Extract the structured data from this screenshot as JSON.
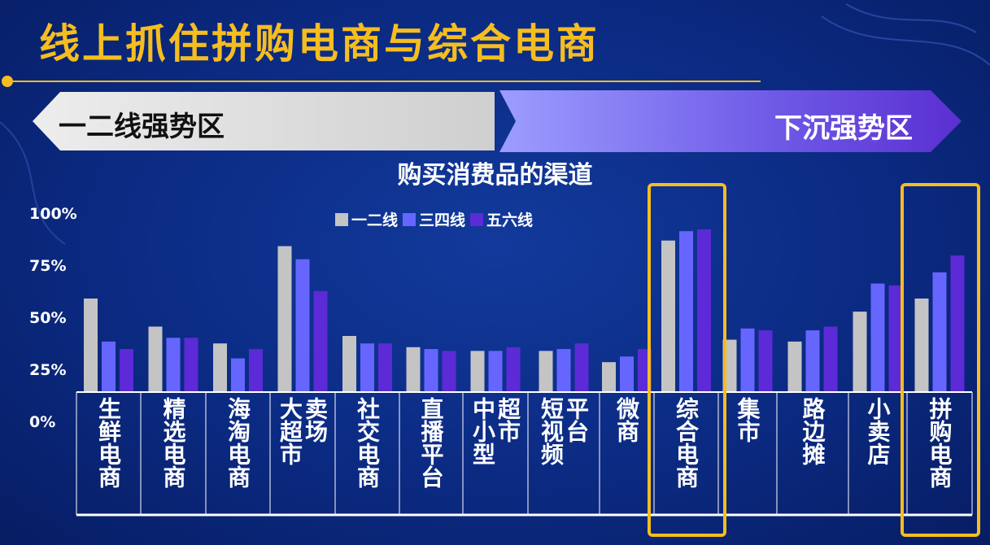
{
  "slide": {
    "title": "线上抓住拼购电商与综合电商",
    "left_arrow_label": "一二线强势区",
    "right_arrow_label": "下沉强势区"
  },
  "colors": {
    "background": "#0b2a82",
    "accent": "#f5bd1f",
    "series_1": "#c4c4c4",
    "series_2": "#6666ff",
    "series_3": "#5c2ad6"
  },
  "chart_data": {
    "type": "bar",
    "title": "购买消费品的渠道",
    "xlabel": "",
    "ylabel": "",
    "ylim": [
      0,
      100
    ],
    "yticks": [
      "0%",
      "25%",
      "50%",
      "75%",
      "100%"
    ],
    "ytick_values": [
      0,
      25,
      50,
      75,
      100
    ],
    "legend_position": "top-center",
    "grid": false,
    "categories": [
      "生鲜电商",
      "精选电商",
      "海淘电商",
      "大超市卖场",
      "社交电商",
      "直播平台",
      "中小型超市",
      "短视频平台",
      "微商",
      "综合电商",
      "集市",
      "路边摊",
      "小卖店",
      "拼购电商"
    ],
    "category_label_columns": [
      [
        "生鲜电商"
      ],
      [
        "精选电商"
      ],
      [
        "海淘电商"
      ],
      [
        "大超市",
        "卖场"
      ],
      [
        "社交电商"
      ],
      [
        "直播平台"
      ],
      [
        "中小型",
        "超市"
      ],
      [
        "短视频",
        "平台"
      ],
      [
        "微商"
      ],
      [
        "综合电商"
      ],
      [
        "集市"
      ],
      [
        "路边摊"
      ],
      [
        "小卖店"
      ],
      [
        "拼购电商"
      ]
    ],
    "series": [
      {
        "name": "一二线",
        "values": [
          50,
          35,
          26,
          78,
          30,
          24,
          22,
          22,
          16,
          81,
          28,
          27,
          43,
          50
        ]
      },
      {
        "name": "三四线",
        "values": [
          27,
          29,
          18,
          71,
          26,
          23,
          22,
          23,
          19,
          86,
          34,
          33,
          58,
          64
        ]
      },
      {
        "name": "五六线",
        "values": [
          23,
          29,
          23,
          54,
          26,
          22,
          24,
          26,
          23,
          87,
          33,
          35,
          57,
          73
        ]
      }
    ],
    "highlighted_categories": [
      "综合电商",
      "拼购电商"
    ]
  }
}
